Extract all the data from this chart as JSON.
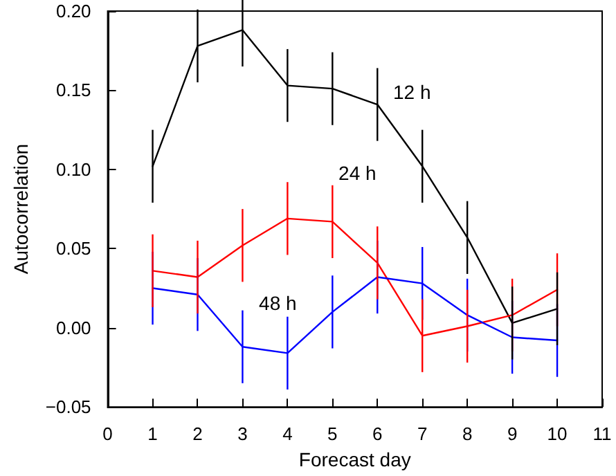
{
  "chart_data": {
    "type": "line",
    "xlabel": "Forecast day",
    "ylabel": "Autocorrelation",
    "x": [
      1,
      2,
      3,
      4,
      5,
      6,
      7,
      8,
      9,
      10
    ],
    "series": [
      {
        "name": "12 h",
        "color": "#000000",
        "values": [
          0.102,
          0.178,
          0.188,
          0.153,
          0.151,
          0.141,
          0.102,
          0.057,
          0.003,
          0.012
        ],
        "errors": [
          0.023,
          0.023,
          0.023,
          0.023,
          0.023,
          0.023,
          0.023,
          0.023,
          0.023,
          0.023
        ]
      },
      {
        "name": "24 h",
        "color": "#ff0000",
        "values": [
          0.036,
          0.032,
          0.052,
          0.069,
          0.067,
          0.041,
          -0.005,
          0.001,
          0.008,
          0.024
        ],
        "errors": [
          0.023,
          0.023,
          0.023,
          0.023,
          0.023,
          0.023,
          0.023,
          0.023,
          0.023,
          0.023
        ]
      },
      {
        "name": "48 h",
        "color": "#0000ff",
        "values": [
          0.025,
          0.021,
          -0.012,
          -0.016,
          0.01,
          0.032,
          0.028,
          0.008,
          -0.006,
          -0.008
        ],
        "errors": [
          0.023,
          0.023,
          0.023,
          0.023,
          0.023,
          0.023,
          0.023,
          0.023,
          0.023,
          0.023
        ]
      }
    ],
    "xlim": [
      0,
      11
    ],
    "xticks": [
      0,
      1,
      2,
      3,
      4,
      5,
      6,
      7,
      8,
      9,
      10,
      11
    ],
    "ylim": [
      -0.05,
      0.2
    ],
    "yticks": [
      {
        "value": -0.05,
        "label": "−0.05"
      },
      {
        "value": 0,
        "label": "0.00"
      },
      {
        "value": 0.05,
        "label": "0.05"
      },
      {
        "value": 0.1,
        "label": "0.10"
      },
      {
        "value": 0.15,
        "label": "0.15"
      },
      {
        "value": 0.2,
        "label": "0.20"
      }
    ],
    "grid": false,
    "legend": false,
    "marker": "none",
    "line_style": "solid"
  }
}
